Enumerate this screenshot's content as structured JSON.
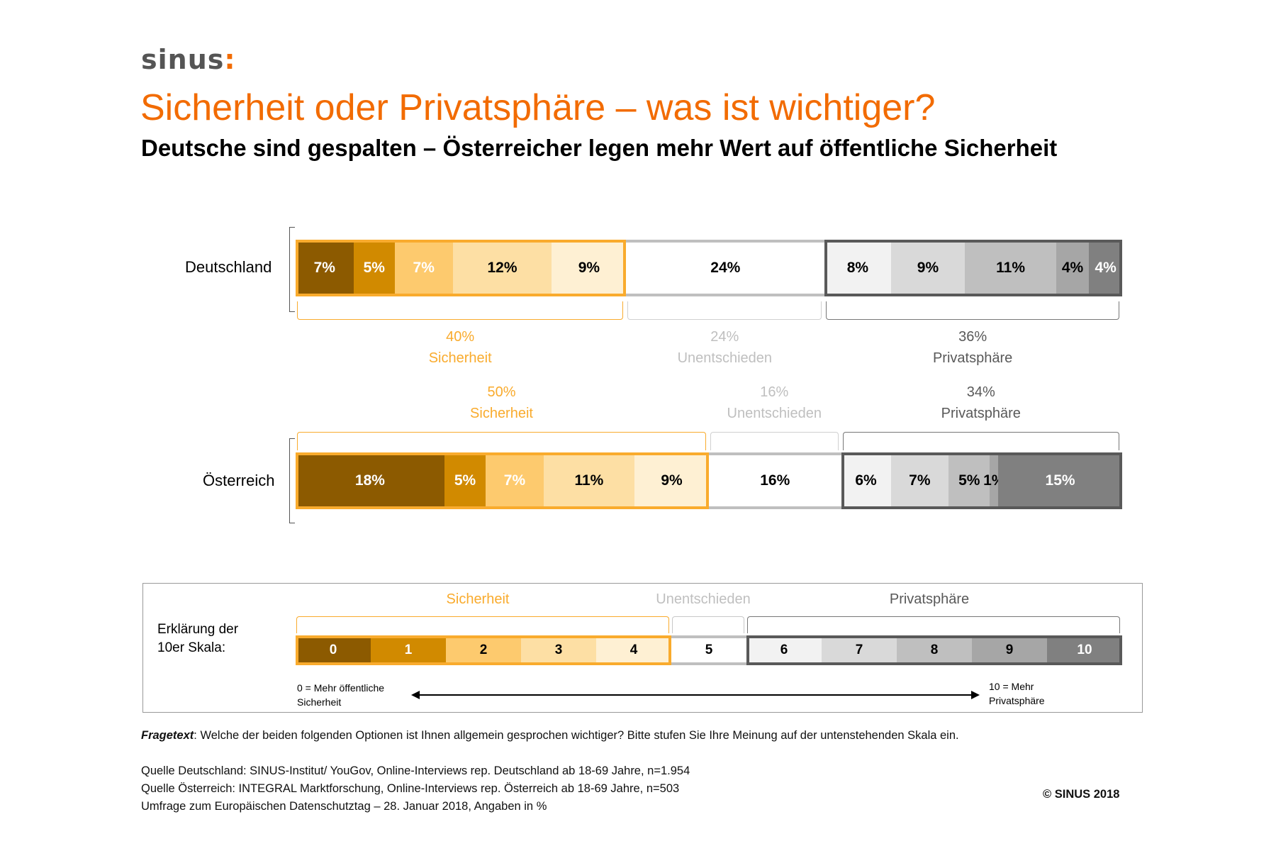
{
  "logo": {
    "text": "sinus",
    "accent": ":"
  },
  "title": "Sicherheit oder Privatsphäre – was ist wichtiger?",
  "subtitle": "Deutsche sind gespalten – Österreicher legen mehr Wert auf öffentliche Sicherheit",
  "colors": {
    "accent": "#f26b00",
    "sicherheit_border": "#f9ab2d",
    "unentschieden_border": "#bfbfbf",
    "privatsphaere_border": "#595959",
    "scale": [
      "#8c5a00",
      "#d18a00",
      "#fdca6e",
      "#fddfa4",
      "#fef0d3",
      "#ffffff",
      "#f2f2f2",
      "#d9d9d9",
      "#bfbfbf",
      "#a6a6a6",
      "#808080"
    ]
  },
  "chart_data": {
    "type": "bar",
    "orientation": "horizontal-stacked",
    "unit": "%",
    "scale_categories": [
      "0",
      "1",
      "2",
      "3",
      "4",
      "5",
      "6",
      "7",
      "8",
      "9",
      "10"
    ],
    "series": [
      {
        "name": "Deutschland",
        "values": [
          7,
          5,
          7,
          12,
          9,
          24,
          8,
          9,
          11,
          4,
          4
        ],
        "labels": [
          "7%",
          "5%",
          "7%",
          "12%",
          "9%",
          "24%",
          "8%",
          "9%",
          "11%",
          "4%",
          "4%"
        ],
        "groups": [
          {
            "key": "sicherheit",
            "pct": "40%",
            "label": "Sicherheit",
            "value": 40
          },
          {
            "key": "unentschieden",
            "pct": "24%",
            "label": "Unentschieden",
            "value": 24
          },
          {
            "key": "privatsphaere",
            "pct": "36%",
            "label": "Privatsphäre",
            "value": 36
          }
        ]
      },
      {
        "name": "Österreich",
        "values": [
          18,
          5,
          7,
          11,
          9,
          16,
          6,
          7,
          5,
          1,
          15
        ],
        "labels": [
          "18%",
          "5%",
          "7%",
          "11%",
          "9%",
          "16%",
          "6%",
          "7%",
          "5%",
          "1%",
          "15%"
        ],
        "groups": [
          {
            "key": "sicherheit",
            "pct": "50%",
            "label": "Sicherheit",
            "value": 50
          },
          {
            "key": "unentschieden",
            "pct": "16%",
            "label": "Unentschieden",
            "value": 16
          },
          {
            "key": "privatsphaere",
            "pct": "34%",
            "label": "Privatsphäre",
            "value": 34
          }
        ]
      }
    ]
  },
  "legend": {
    "caption_line1": "Erklärung der",
    "caption_line2": "10er Skala:",
    "headings": {
      "sicherheit": "Sicherheit",
      "unentschieden": "Unentschieden",
      "privatsphaere": "Privatsphäre"
    },
    "left_end_line1": "0 = Mehr öffentliche",
    "left_end_line2": "Sicherheit",
    "right_end_line1": "10 = Mehr",
    "right_end_line2": "Privatsphäre"
  },
  "footer": {
    "fragetext_label": "Fragetext",
    "fragetext": ": Welche der beiden folgenden Optionen ist Ihnen allgemein gesprochen wichtiger? Bitte stufen Sie Ihre Meinung auf der untenstehenden  Skala ein.",
    "source_de": "Quelle Deutschland: SINUS-Institut/ YouGov, Online-Interviews rep. Deutschland ab 18-69 Jahre, n=1.954",
    "source_at": "Quelle Österreich: INTEGRAL Marktforschung, Online-Interviews rep. Österreich ab 18-69 Jahre, n=503",
    "survey": "Umfrage zum Europäischen Datenschutztag – 28. Januar 2018, Angaben in %",
    "copyright": "© SINUS 2018"
  }
}
